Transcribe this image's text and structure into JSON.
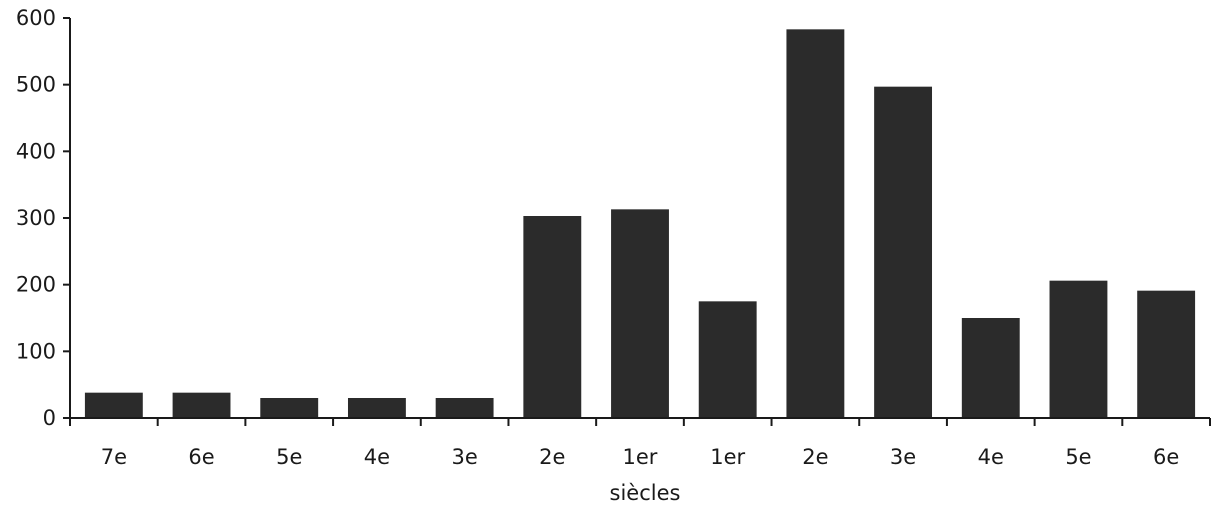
{
  "chart_data": {
    "type": "bar",
    "title": "",
    "xlabel": "siècles",
    "ylabel": "",
    "ylim": [
      0,
      600
    ],
    "yticks": [
      0,
      100,
      200,
      300,
      400,
      500,
      600
    ],
    "grid": false,
    "categories": [
      "7e",
      "6e",
      "5e",
      "4e",
      "3e",
      "2e",
      "1er",
      "1er",
      "2e",
      "3e",
      "4e",
      "5e",
      "6e"
    ],
    "values": [
      38,
      38,
      30,
      30,
      30,
      303,
      313,
      175,
      583,
      497,
      150,
      206,
      191
    ],
    "bar_color": "#2b2b2b"
  }
}
